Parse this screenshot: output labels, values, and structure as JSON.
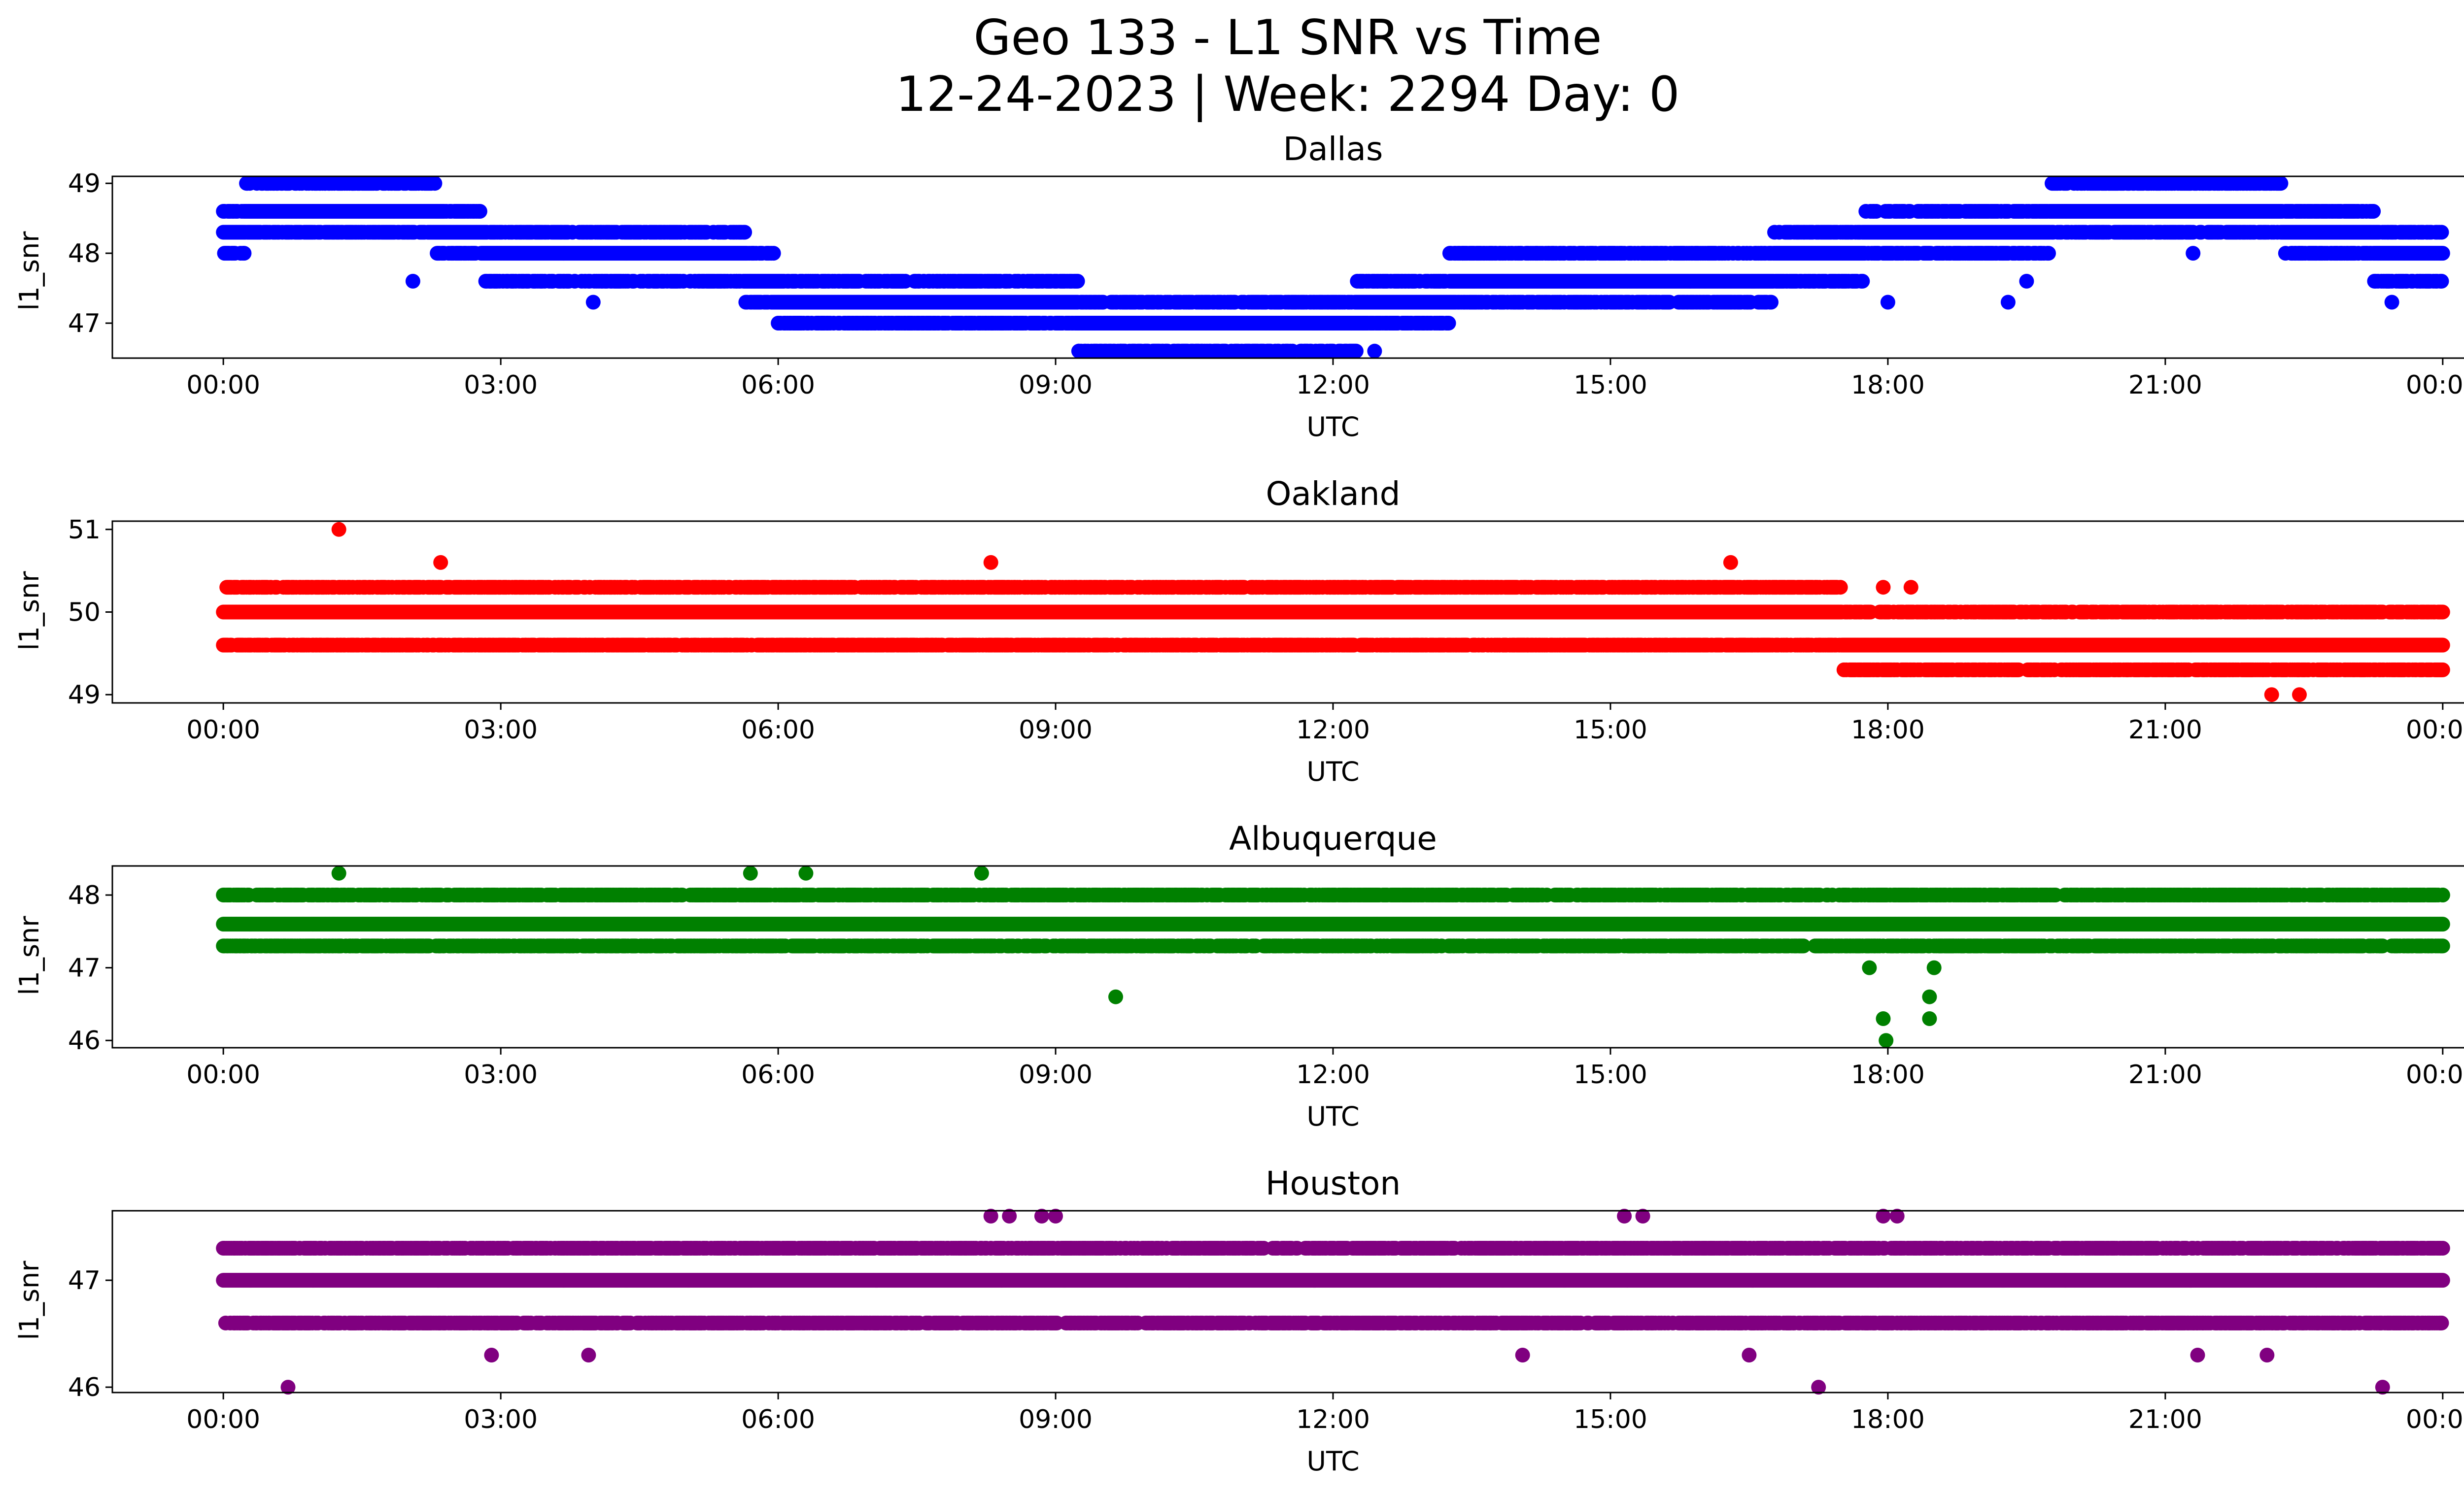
{
  "figure": {
    "title_line1": "Geo 133 - L1 SNR vs Time",
    "title_line2": "12-24-2023 | Week: 2294 Day: 0"
  },
  "chart_data": [
    {
      "type": "scatter",
      "title": "Dallas",
      "xlabel": "UTC",
      "ylabel": "l1_snr",
      "color": "#0000ff",
      "xlim_hours": [
        -1.2,
        25.2
      ],
      "ylim": [
        46.5,
        49.1
      ],
      "x_ticks": [
        "00:00",
        "03:00",
        "06:00",
        "09:00",
        "12:00",
        "15:00",
        "18:00",
        "21:00",
        "00:00"
      ],
      "y_ticks": [
        47,
        48,
        49
      ],
      "grid": false,
      "baseline": [
        [
          0.0,
          48.3
        ],
        [
          0.5,
          48.6
        ],
        [
          1.0,
          48.6
        ],
        [
          1.5,
          48.6
        ],
        [
          2.0,
          48.6
        ],
        [
          2.6,
          48.3
        ],
        [
          3.0,
          48.0
        ],
        [
          3.5,
          48.0
        ],
        [
          4.0,
          48.0
        ],
        [
          4.5,
          48.0
        ],
        [
          5.0,
          48.0
        ],
        [
          5.5,
          48.0
        ],
        [
          5.8,
          47.6
        ],
        [
          6.2,
          47.3
        ],
        [
          6.6,
          47.3
        ],
        [
          7.0,
          47.3
        ],
        [
          7.5,
          47.3
        ],
        [
          8.0,
          47.3
        ],
        [
          8.5,
          47.3
        ],
        [
          9.0,
          47.3
        ],
        [
          9.5,
          47.0
        ],
        [
          10.0,
          47.0
        ],
        [
          10.5,
          47.0
        ],
        [
          11.0,
          47.0
        ],
        [
          11.5,
          47.0
        ],
        [
          12.0,
          47.0
        ],
        [
          12.5,
          47.3
        ],
        [
          13.0,
          47.3
        ],
        [
          13.5,
          47.6
        ],
        [
          14.0,
          47.6
        ],
        [
          14.5,
          47.6
        ],
        [
          15.0,
          47.6
        ],
        [
          15.5,
          47.6
        ],
        [
          16.0,
          47.6
        ],
        [
          16.5,
          47.6
        ],
        [
          17.0,
          48.0
        ],
        [
          17.5,
          48.0
        ],
        [
          18.0,
          48.3
        ],
        [
          18.5,
          48.3
        ],
        [
          19.0,
          48.3
        ],
        [
          19.5,
          48.3
        ],
        [
          20.0,
          48.6
        ],
        [
          20.5,
          48.6
        ],
        [
          21.0,
          48.6
        ],
        [
          21.5,
          48.6
        ],
        [
          22.0,
          48.6
        ],
        [
          22.5,
          48.3
        ],
        [
          23.0,
          48.3
        ],
        [
          23.5,
          48.0
        ],
        [
          24.0,
          48.0
        ]
      ],
      "spread_levels": [
        46.6,
        47.0,
        47.3,
        47.6,
        48.0,
        48.3,
        48.6,
        49.0
      ],
      "outliers": [
        [
          1.1,
          49.0
        ],
        [
          1.4,
          49.0
        ],
        [
          1.55,
          49.0
        ],
        [
          1.85,
          49.0
        ],
        [
          2.05,
          47.6
        ],
        [
          3.9,
          48.3
        ],
        [
          4.0,
          47.3
        ],
        [
          5.55,
          47.6
        ],
        [
          9.25,
          46.6
        ],
        [
          9.5,
          46.6
        ],
        [
          9.7,
          46.6
        ],
        [
          10.0,
          46.6
        ],
        [
          10.95,
          46.6
        ],
        [
          12.45,
          46.6
        ],
        [
          13.4,
          48.0
        ],
        [
          18.0,
          47.3
        ],
        [
          19.3,
          47.3
        ],
        [
          19.5,
          47.6
        ],
        [
          21.3,
          48.0
        ],
        [
          23.45,
          47.3
        ]
      ]
    },
    {
      "type": "scatter",
      "title": "Oakland",
      "xlabel": "UTC",
      "ylabel": "l1_snr",
      "color": "#ff0000",
      "xlim_hours": [
        -1.2,
        25.2
      ],
      "ylim": [
        48.9,
        51.1
      ],
      "x_ticks": [
        "00:00",
        "03:00",
        "06:00",
        "09:00",
        "12:00",
        "15:00",
        "18:00",
        "21:00",
        "00:00"
      ],
      "y_ticks": [
        49,
        50,
        51
      ],
      "grid": false,
      "baseline": [
        [
          0.0,
          50.0
        ],
        [
          1.0,
          50.0
        ],
        [
          2.0,
          50.0
        ],
        [
          3.0,
          50.0
        ],
        [
          4.0,
          50.0
        ],
        [
          5.0,
          50.0
        ],
        [
          6.0,
          50.0
        ],
        [
          7.0,
          50.0
        ],
        [
          8.0,
          50.0
        ],
        [
          9.0,
          50.0
        ],
        [
          10.0,
          50.0
        ],
        [
          11.0,
          50.0
        ],
        [
          12.0,
          50.0
        ],
        [
          13.0,
          50.0
        ],
        [
          14.0,
          50.0
        ],
        [
          15.0,
          50.0
        ],
        [
          16.0,
          50.0
        ],
        [
          17.0,
          50.0
        ],
        [
          18.0,
          49.6
        ],
        [
          19.0,
          49.6
        ],
        [
          20.0,
          49.6
        ],
        [
          21.0,
          49.6
        ],
        [
          22.0,
          49.6
        ],
        [
          23.0,
          49.6
        ],
        [
          24.0,
          49.6
        ]
      ],
      "spread_levels": [
        49.3,
        49.6,
        50.0,
        50.3,
        50.6
      ],
      "outliers": [
        [
          1.25,
          51.0
        ],
        [
          2.35,
          50.6
        ],
        [
          4.1,
          49.6
        ],
        [
          4.7,
          49.6
        ],
        [
          8.3,
          50.6
        ],
        [
          12.15,
          49.6
        ],
        [
          14.1,
          49.6
        ],
        [
          16.3,
          50.6
        ],
        [
          17.75,
          49.3
        ],
        [
          17.95,
          50.3
        ],
        [
          18.25,
          50.3
        ],
        [
          22.15,
          49.0
        ],
        [
          22.45,
          49.0
        ]
      ]
    },
    {
      "type": "scatter",
      "title": "Albuquerque",
      "xlabel": "UTC",
      "ylabel": "l1_snr",
      "color": "#008000",
      "xlim_hours": [
        -1.2,
        25.2
      ],
      "ylim": [
        45.9,
        48.4
      ],
      "x_ticks": [
        "00:00",
        "03:00",
        "06:00",
        "09:00",
        "12:00",
        "15:00",
        "18:00",
        "21:00",
        "00:00"
      ],
      "y_ticks": [
        46,
        47,
        48
      ],
      "grid": false,
      "baseline": [
        [
          0.0,
          47.6
        ],
        [
          2.0,
          47.6
        ],
        [
          4.0,
          47.6
        ],
        [
          6.0,
          47.6
        ],
        [
          8.0,
          47.6
        ],
        [
          10.0,
          47.6
        ],
        [
          12.0,
          47.6
        ],
        [
          14.0,
          47.6
        ],
        [
          16.0,
          47.6
        ],
        [
          18.0,
          47.6
        ],
        [
          20.0,
          47.6
        ],
        [
          22.0,
          47.6
        ],
        [
          24.0,
          47.6
        ]
      ],
      "spread_levels": [
        47.0,
        47.3,
        47.6,
        48.0
      ],
      "outliers": [
        [
          0.1,
          47.3
        ],
        [
          1.25,
          48.3
        ],
        [
          2.45,
          47.3
        ],
        [
          3.2,
          48.0
        ],
        [
          5.7,
          48.3
        ],
        [
          6.3,
          48.3
        ],
        [
          6.5,
          47.3
        ],
        [
          8.2,
          48.3
        ],
        [
          9.65,
          46.6
        ],
        [
          17.8,
          47.0
        ],
        [
          17.95,
          46.3
        ],
        [
          17.98,
          46.0
        ],
        [
          18.45,
          46.6
        ],
        [
          18.45,
          46.3
        ],
        [
          18.5,
          47.0
        ],
        [
          21.15,
          47.3
        ],
        [
          24.0,
          48.0
        ]
      ]
    },
    {
      "type": "scatter",
      "title": "Houston",
      "xlabel": "UTC",
      "ylabel": "l1_snr",
      "color": "#800080",
      "xlim_hours": [
        -1.2,
        25.2
      ],
      "ylim": [
        45.95,
        47.65
      ],
      "x_ticks": [
        "00:00",
        "03:00",
        "06:00",
        "09:00",
        "12:00",
        "15:00",
        "18:00",
        "21:00",
        "00:00"
      ],
      "y_ticks": [
        46,
        47
      ],
      "grid": false,
      "baseline": [
        [
          0.0,
          47.0
        ],
        [
          2.0,
          47.0
        ],
        [
          4.0,
          47.0
        ],
        [
          6.0,
          47.0
        ],
        [
          8.0,
          47.0
        ],
        [
          10.0,
          47.0
        ],
        [
          12.0,
          47.0
        ],
        [
          14.0,
          47.0
        ],
        [
          16.0,
          47.0
        ],
        [
          18.0,
          47.0
        ],
        [
          20.0,
          47.0
        ],
        [
          22.0,
          47.0
        ],
        [
          24.0,
          47.0
        ]
      ],
      "spread_levels": [
        46.3,
        46.6,
        47.0,
        47.3
      ],
      "outliers": [
        [
          0.7,
          46.0
        ],
        [
          2.9,
          46.3
        ],
        [
          3.95,
          46.3
        ],
        [
          8.3,
          47.6
        ],
        [
          8.5,
          47.6
        ],
        [
          8.85,
          47.6
        ],
        [
          9.0,
          47.6
        ],
        [
          11.45,
          46.6
        ],
        [
          14.05,
          46.3
        ],
        [
          15.15,
          47.6
        ],
        [
          15.35,
          47.6
        ],
        [
          16.5,
          46.3
        ],
        [
          17.25,
          46.0
        ],
        [
          17.95,
          47.6
        ],
        [
          18.1,
          47.6
        ],
        [
          21.35,
          46.3
        ],
        [
          22.1,
          46.3
        ],
        [
          23.35,
          46.0
        ]
      ]
    }
  ]
}
